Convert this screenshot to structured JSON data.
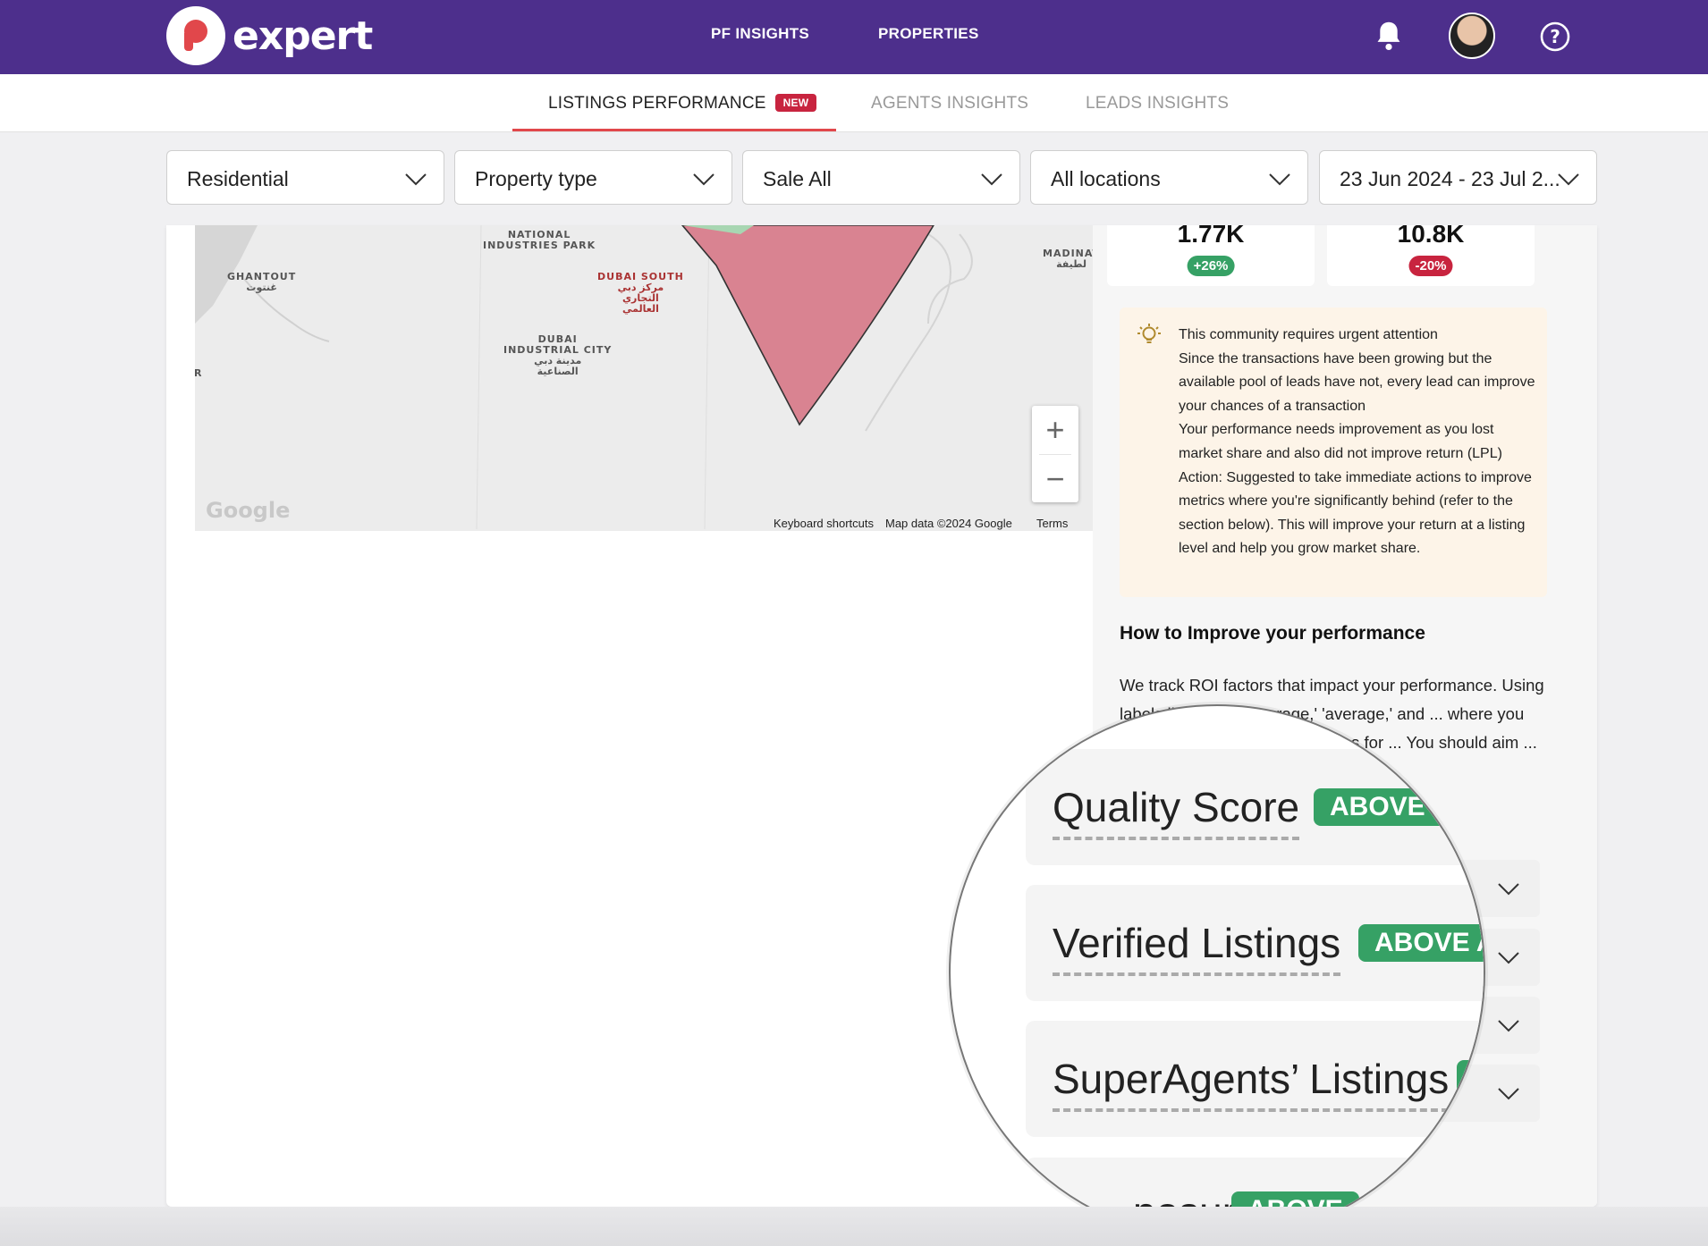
{
  "topbar": {
    "logo_text": "expert",
    "nav": [
      "PF INSIGHTS",
      "PROPERTIES"
    ],
    "icons": [
      "bell-icon",
      "avatar",
      "help-icon"
    ]
  },
  "tabs": {
    "items": [
      {
        "label": "LISTINGS PERFORMANCE",
        "badge": "NEW",
        "active": true
      },
      {
        "label": "AGENTS INSIGHTS",
        "active": false
      },
      {
        "label": "LEADS INSIGHTS",
        "active": false
      }
    ]
  },
  "filters": [
    "Residential",
    "Property type",
    "Sale All",
    "All locations",
    "23 Jun 2024 - 23 Jul 2..."
  ],
  "map": {
    "labels": {
      "national": "NATIONAL\nINDUSTRIES PARK",
      "ghantout": "GHANTOUT\nغنتوت",
      "dubai_south": "DUBAI SOUTH\nمركز دبي\nالتجاري\nالعالمي",
      "industrial": "DUBAI\nINDUSTRIAL CITY\nمدينة دبي\nالصناعية",
      "madinat": "MADINAT\nلطيفة",
      "edge_r": "R"
    },
    "zoom_in": "+",
    "zoom_out": "−",
    "google": "Google",
    "footer": [
      "Keyboard shortcuts",
      "Map data ©2024 Google",
      "Terms"
    ]
  },
  "stats": [
    {
      "value": "1.77K",
      "change": "+26%",
      "color": "#36a165"
    },
    {
      "value": "10.8K",
      "change": "-20%",
      "color": "#c8243f"
    }
  ],
  "alert": {
    "lines": [
      "This community requires urgent attention",
      "Since the transactions have been growing but the available pool of leads have not, every lead can improve your chances of a transaction",
      "Your performance needs improvement as you lost market share and also did not improve return (LPL)",
      "Action: Suggested to take immediate actions to improve metrics where you're significantly behind (refer to the section below). This will improve your return at a listing level and help you grow market share."
    ]
  },
  "how": {
    "title": "How to Improve your performance",
    "body": "We track ROI factors that impact your performance. Using labels like 'above average,' 'average,' and ... where you stand compared ... identify areas for ... You should aim ..."
  },
  "magnifier": {
    "rows": [
      {
        "label": "Quality Score",
        "badge": "ABOVE A"
      },
      {
        "label": "Verified Listings",
        "badge": "ABOVE AV"
      },
      {
        "label": "SuperAgents’ Listings",
        "badge": ""
      },
      {
        "label": "posure",
        "badge": "ABOVE"
      }
    ]
  },
  "colors": {
    "brand": "#4d2f8c",
    "accent": "#e1474b",
    "positive": "#36a165",
    "negative": "#c8243f",
    "alert_bg": "#fdf4e8"
  }
}
